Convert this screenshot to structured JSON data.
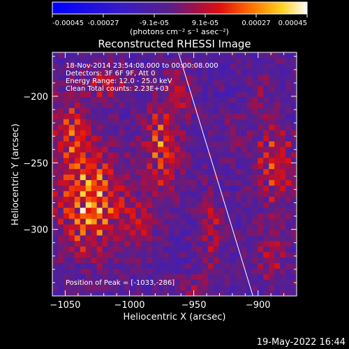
{
  "colorbar": {
    "ticks": [
      "-0.00045",
      "-0.00027",
      "-9.1e-05",
      "9.1e-05",
      "0.00027",
      "0.00045"
    ],
    "unit_label": "(photons cm⁻² s⁻¹ asec⁻²)"
  },
  "footer": {
    "date": "19-May-2022 16:44"
  },
  "chart_data": {
    "type": "heatmap",
    "title": "Reconstructed RHESSI Image",
    "xlabel": "Heliocentric X (arcsec)",
    "ylabel": "Heliocentric Y (arcsec)",
    "xlim": [
      -1060,
      -870
    ],
    "ylim": [
      -350,
      -167
    ],
    "xticks": [
      -1050,
      -1000,
      -950,
      -900
    ],
    "yticks": [
      -200,
      -250,
      -300
    ],
    "value_range": [
      -0.00045,
      0.00045
    ],
    "colormap": "blue-purple-red-orange-yellow-white",
    "annotations": [
      "18-Nov-2014 23:54:08.000 to 00:00:08.000",
      "Detectors: 3F 6F 9F, Att 0",
      "Energy Range: 12.0 - 25.0 keV",
      "Clean    Total counts: 2.23E+03",
      "Position of Peak = [-1033,-286]"
    ],
    "peak": [
      -1033,
      -286
    ],
    "limb_line": [
      [
        -962,
        -167
      ],
      [
        -904,
        -350
      ]
    ],
    "blobs": [
      {
        "x": -1030,
        "y": -280,
        "amp": 1.0,
        "sx": 18,
        "sy": 26
      },
      {
        "x": -1045,
        "y": -225,
        "amp": 0.65,
        "sx": 12,
        "sy": 20
      },
      {
        "x": -1018,
        "y": -190,
        "amp": 0.5,
        "sx": 10,
        "sy": 10
      },
      {
        "x": -975,
        "y": -237,
        "amp": 0.8,
        "sx": 10,
        "sy": 24
      },
      {
        "x": -992,
        "y": -295,
        "amp": 0.45,
        "sx": 9,
        "sy": 14
      },
      {
        "x": -960,
        "y": -195,
        "amp": 0.5,
        "sx": 7,
        "sy": 12
      },
      {
        "x": -937,
        "y": -300,
        "amp": 0.45,
        "sx": 6,
        "sy": 24
      },
      {
        "x": -918,
        "y": -227,
        "amp": 0.3,
        "sx": 6,
        "sy": 12
      },
      {
        "x": -888,
        "y": -250,
        "amp": 0.65,
        "sx": 10,
        "sy": 24
      },
      {
        "x": -892,
        "y": -320,
        "amp": 0.45,
        "sx": 9,
        "sy": 14
      },
      {
        "x": -900,
        "y": -195,
        "amp": 0.25,
        "sx": 8,
        "sy": 10
      },
      {
        "x": -950,
        "y": -345,
        "amp": 0.35,
        "sx": 10,
        "sy": 8
      }
    ]
  }
}
